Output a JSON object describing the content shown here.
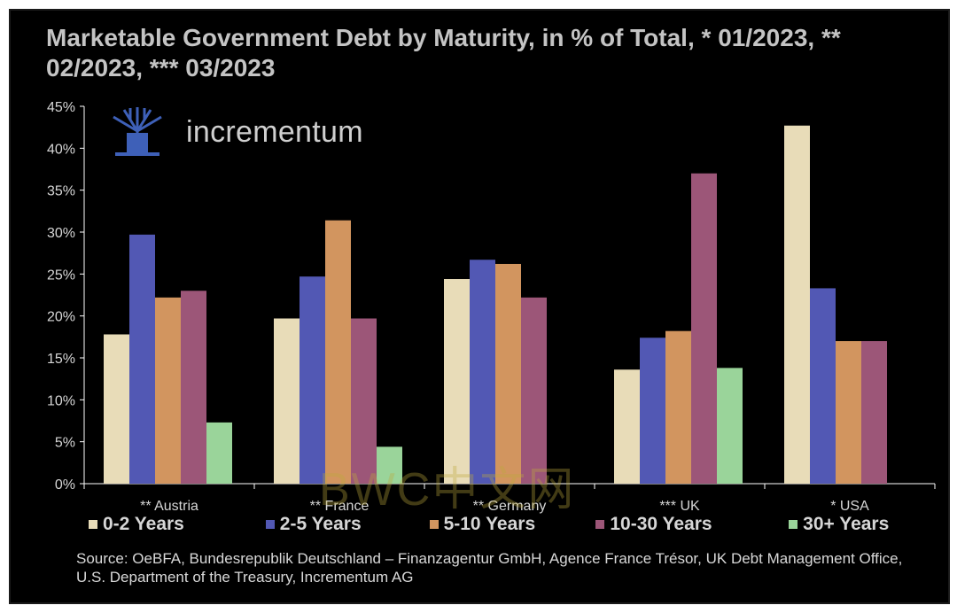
{
  "title": "Marketable Government Debt by Maturity, in % of Total, * 01/2023, ** 02/2023, *** 03/2023",
  "logo_text": "incrementum",
  "source": "Source: OeBFA, Bundesrepublik Deutschland – Finanzagentur GmbH, Agence France Trésor, UK Debt Management Office, U.S. Department of the Treasury, Incrementum AG",
  "watermark": "BWC中文网",
  "colors": {
    "background": "#000000",
    "axis": "#ffffff",
    "text": "#d6d6d6"
  },
  "chart_data": {
    "type": "bar",
    "title": "Marketable Government Debt by Maturity, in % of Total, * 01/2023, ** 02/2023, *** 03/2023",
    "categories": [
      "** Austria",
      "** France",
      "** Germany",
      "*** UK",
      "* USA"
    ],
    "y_ticks": [
      "0%",
      "5%",
      "10%",
      "15%",
      "20%",
      "25%",
      "30%",
      "35%",
      "40%",
      "45%"
    ],
    "ylim": [
      0,
      45
    ],
    "legend_position": "bottom",
    "grid": false,
    "series": [
      {
        "name": "0-2 Years",
        "color": "#e8dcb8",
        "values": [
          17.8,
          19.7,
          24.4,
          13.6,
          42.7
        ]
      },
      {
        "name": "2-5 Years",
        "color": "#5258b4",
        "values": [
          29.7,
          24.7,
          26.7,
          17.4,
          23.3
        ]
      },
      {
        "name": "5-10 Years",
        "color": "#d2955f",
        "values": [
          22.2,
          31.4,
          26.2,
          18.2,
          17.0
        ]
      },
      {
        "name": "10-30 Years",
        "color": "#9c5678",
        "values": [
          23.0,
          19.7,
          22.2,
          37.0,
          17.0
        ]
      },
      {
        "name": "30+ Years",
        "color": "#9ad49a",
        "values": [
          7.3,
          4.4,
          null,
          13.8,
          null
        ]
      }
    ]
  }
}
